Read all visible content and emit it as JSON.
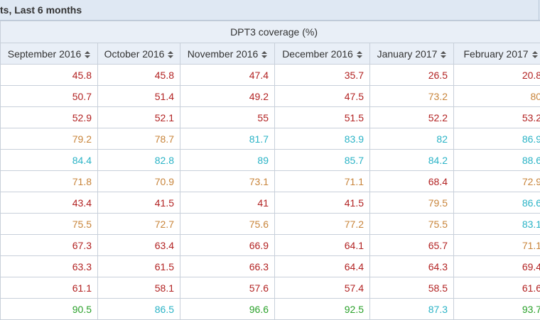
{
  "title": "ts, Last 6 months",
  "group_header": "DPT3 coverage (%)",
  "columns": [
    "September 2016",
    "October 2016",
    "November 2016",
    "December 2016",
    "January 2017",
    "February 2017"
  ],
  "colors": {
    "red": "#b22222",
    "orange": "#c8843a",
    "cyan": "#2ab3c6",
    "green": "#2aa12a"
  },
  "rows": [
    [
      {
        "v": "45.8",
        "c": "red"
      },
      {
        "v": "45.8",
        "c": "red"
      },
      {
        "v": "47.4",
        "c": "red"
      },
      {
        "v": "35.7",
        "c": "red"
      },
      {
        "v": "26.5",
        "c": "red"
      },
      {
        "v": "20.8",
        "c": "red"
      }
    ],
    [
      {
        "v": "50.7",
        "c": "red"
      },
      {
        "v": "51.4",
        "c": "red"
      },
      {
        "v": "49.2",
        "c": "red"
      },
      {
        "v": "47.5",
        "c": "red"
      },
      {
        "v": "73.2",
        "c": "orange"
      },
      {
        "v": "80",
        "c": "orange"
      }
    ],
    [
      {
        "v": "52.9",
        "c": "red"
      },
      {
        "v": "52.1",
        "c": "red"
      },
      {
        "v": "55",
        "c": "red"
      },
      {
        "v": "51.5",
        "c": "red"
      },
      {
        "v": "52.2",
        "c": "red"
      },
      {
        "v": "53.2",
        "c": "red"
      }
    ],
    [
      {
        "v": "79.2",
        "c": "orange"
      },
      {
        "v": "78.7",
        "c": "orange"
      },
      {
        "v": "81.7",
        "c": "cyan"
      },
      {
        "v": "83.9",
        "c": "cyan"
      },
      {
        "v": "82",
        "c": "cyan"
      },
      {
        "v": "86.9",
        "c": "cyan"
      }
    ],
    [
      {
        "v": "84.4",
        "c": "cyan"
      },
      {
        "v": "82.8",
        "c": "cyan"
      },
      {
        "v": "89",
        "c": "cyan"
      },
      {
        "v": "85.7",
        "c": "cyan"
      },
      {
        "v": "84.2",
        "c": "cyan"
      },
      {
        "v": "88.6",
        "c": "cyan"
      }
    ],
    [
      {
        "v": "71.8",
        "c": "orange"
      },
      {
        "v": "70.9",
        "c": "orange"
      },
      {
        "v": "73.1",
        "c": "orange"
      },
      {
        "v": "71.1",
        "c": "orange"
      },
      {
        "v": "68.4",
        "c": "red"
      },
      {
        "v": "72.9",
        "c": "orange"
      }
    ],
    [
      {
        "v": "43.4",
        "c": "red"
      },
      {
        "v": "41.5",
        "c": "red"
      },
      {
        "v": "41",
        "c": "red"
      },
      {
        "v": "41.5",
        "c": "red"
      },
      {
        "v": "79.5",
        "c": "orange"
      },
      {
        "v": "86.6",
        "c": "cyan"
      }
    ],
    [
      {
        "v": "75.5",
        "c": "orange"
      },
      {
        "v": "72.7",
        "c": "orange"
      },
      {
        "v": "75.6",
        "c": "orange"
      },
      {
        "v": "77.2",
        "c": "orange"
      },
      {
        "v": "75.5",
        "c": "orange"
      },
      {
        "v": "83.1",
        "c": "cyan"
      }
    ],
    [
      {
        "v": "67.3",
        "c": "red"
      },
      {
        "v": "63.4",
        "c": "red"
      },
      {
        "v": "66.9",
        "c": "red"
      },
      {
        "v": "64.1",
        "c": "red"
      },
      {
        "v": "65.7",
        "c": "red"
      },
      {
        "v": "71.1",
        "c": "orange"
      }
    ],
    [
      {
        "v": "63.3",
        "c": "red"
      },
      {
        "v": "61.5",
        "c": "red"
      },
      {
        "v": "66.3",
        "c": "red"
      },
      {
        "v": "64.4",
        "c": "red"
      },
      {
        "v": "64.3",
        "c": "red"
      },
      {
        "v": "69.4",
        "c": "red"
      }
    ],
    [
      {
        "v": "61.1",
        "c": "red"
      },
      {
        "v": "58.1",
        "c": "red"
      },
      {
        "v": "57.6",
        "c": "red"
      },
      {
        "v": "57.4",
        "c": "red"
      },
      {
        "v": "58.5",
        "c": "red"
      },
      {
        "v": "61.6",
        "c": "red"
      }
    ],
    [
      {
        "v": "90.5",
        "c": "green"
      },
      {
        "v": "86.5",
        "c": "cyan"
      },
      {
        "v": "96.6",
        "c": "green"
      },
      {
        "v": "92.5",
        "c": "green"
      },
      {
        "v": "87.3",
        "c": "cyan"
      },
      {
        "v": "93.7",
        "c": "green"
      }
    ]
  ]
}
